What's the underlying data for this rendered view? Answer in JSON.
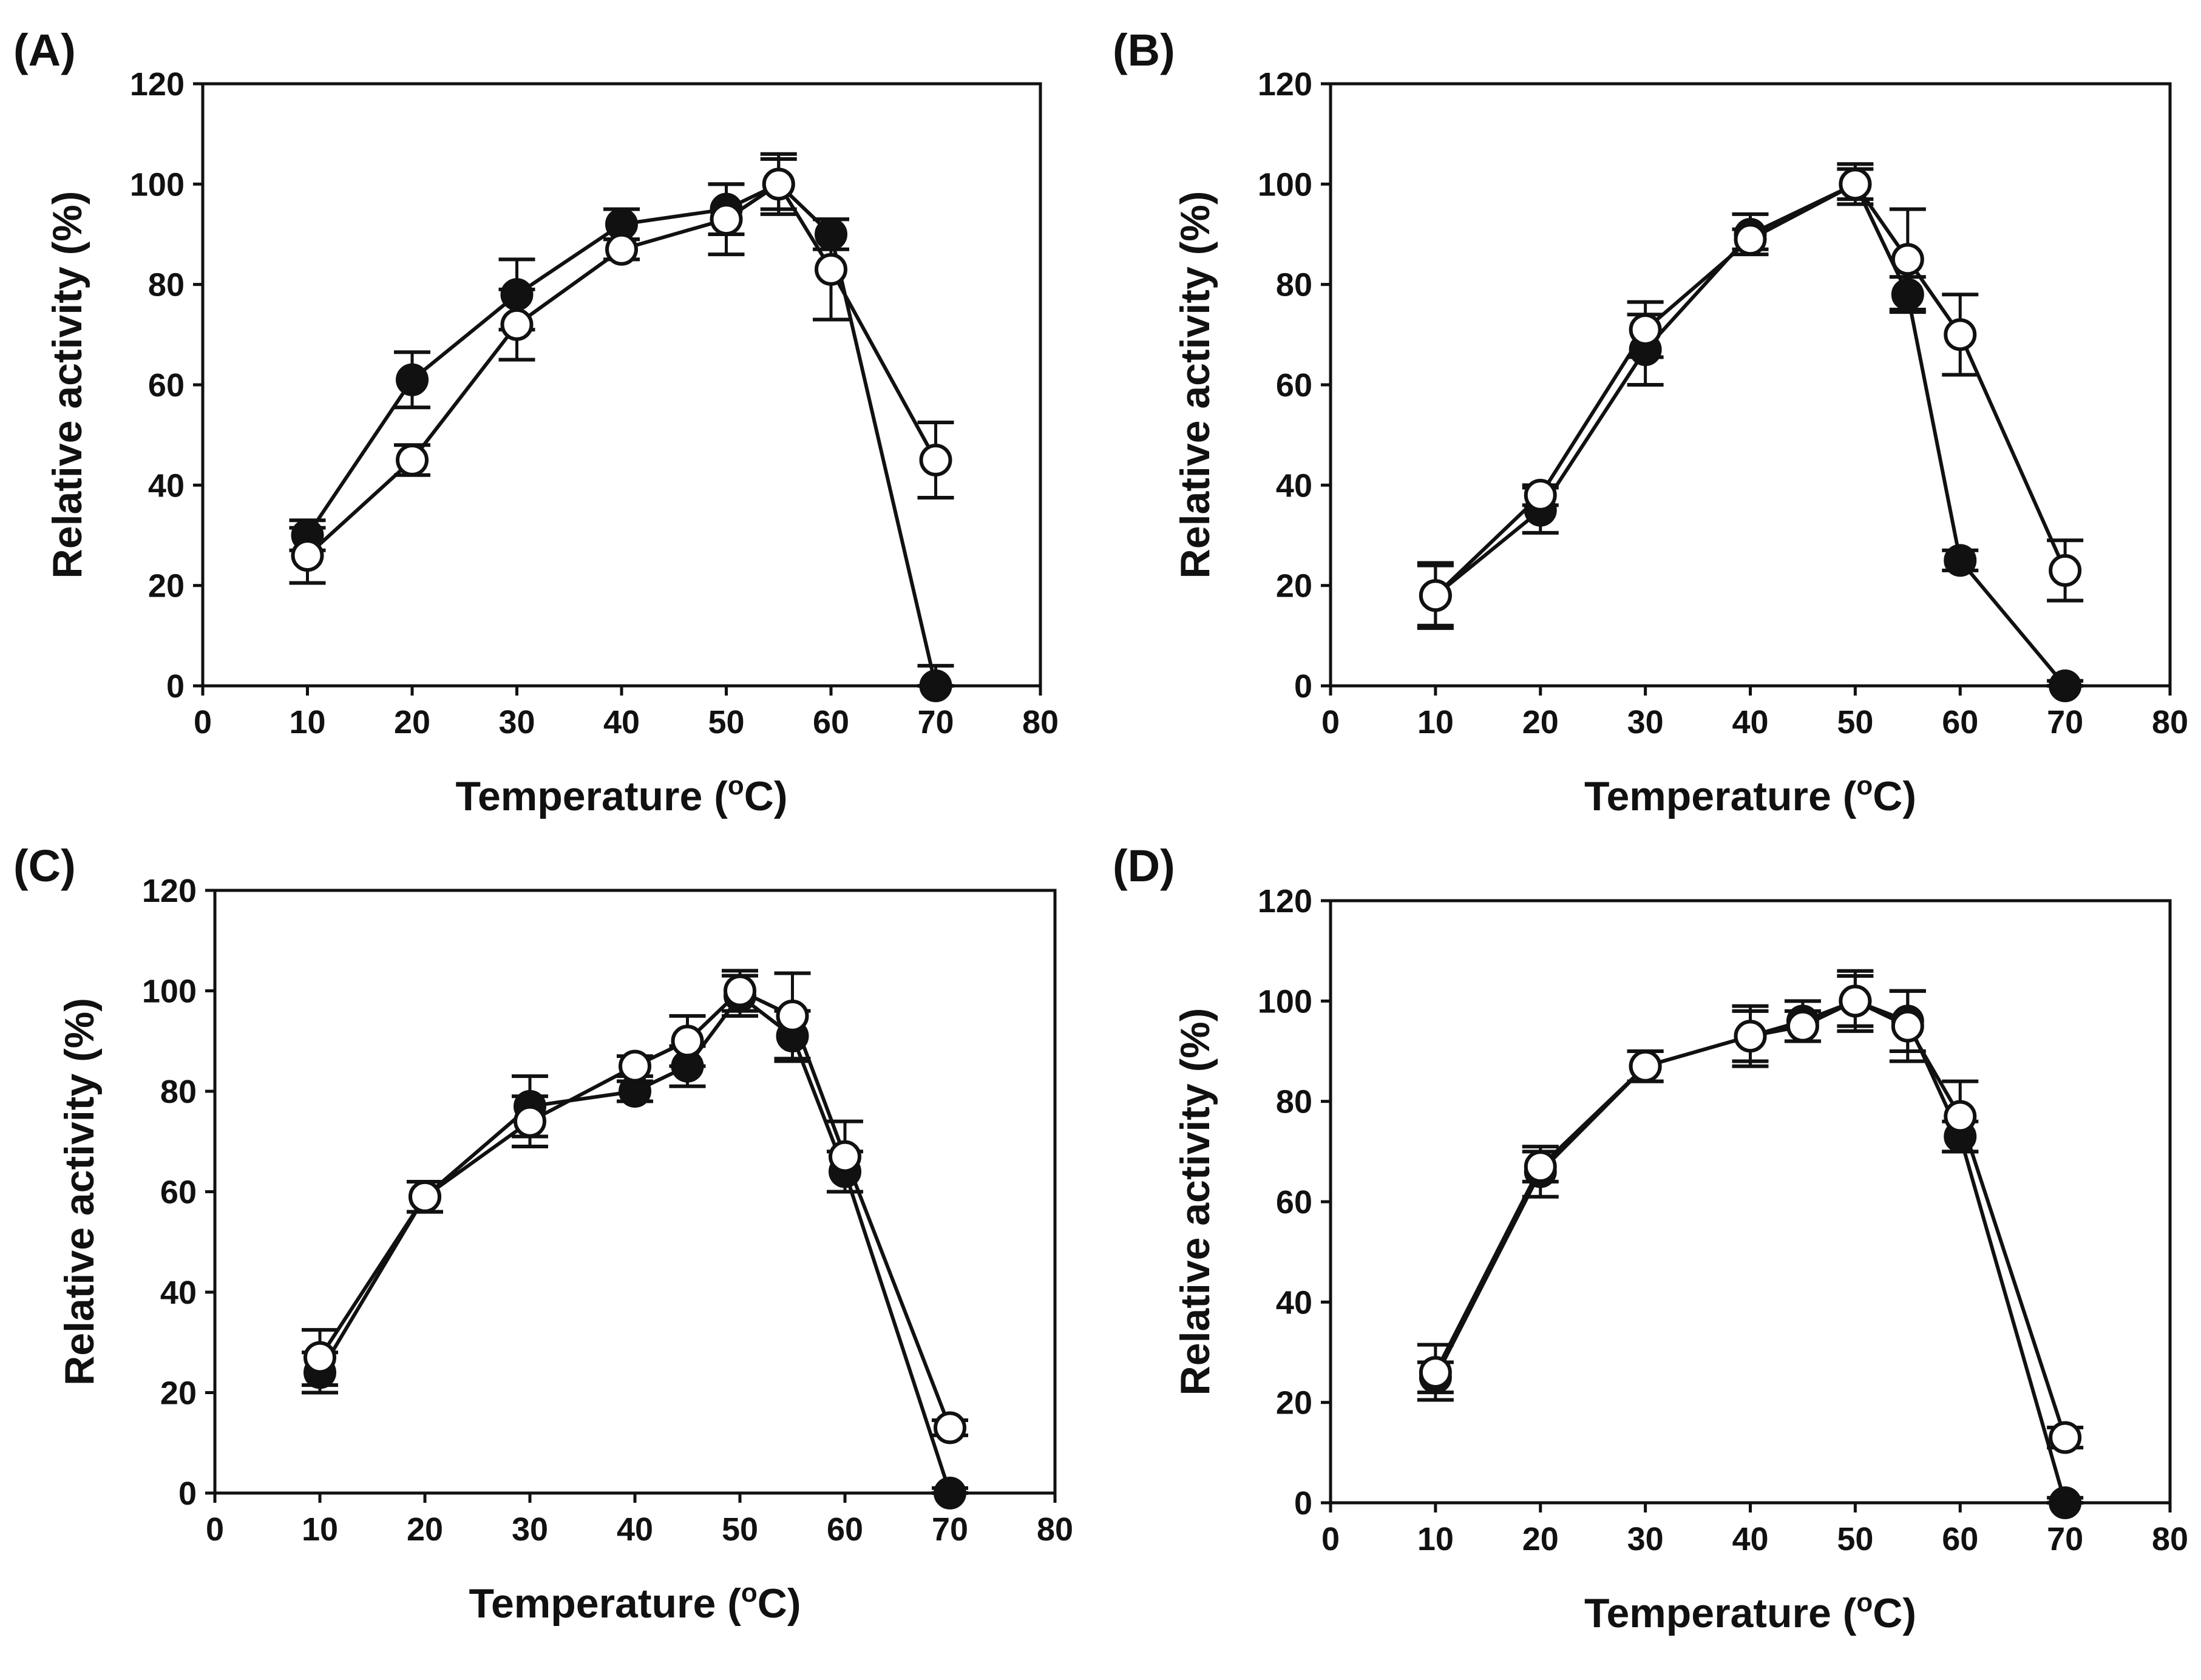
{
  "chart_data": [
    {
      "panel_label": "(A)",
      "type": "line",
      "xlabel": "Temperature",
      "xlabel_unit_prefix": " (",
      "xlabel_unit_sup": "o",
      "xlabel_unit": "C)",
      "ylabel": "Relative activity (%)",
      "xlim": [
        0,
        80
      ],
      "ylim": [
        0,
        120
      ],
      "xticks": [
        0,
        10,
        20,
        30,
        40,
        50,
        60,
        70,
        80
      ],
      "yticks": [
        0,
        20,
        40,
        60,
        80,
        100,
        120
      ],
      "grid": false,
      "series": [
        {
          "marker": "filled-circle",
          "x": [
            10,
            20,
            30,
            40,
            50,
            55,
            60,
            70
          ],
          "y": [
            30,
            61,
            78,
            92,
            95,
            100,
            90,
            0
          ],
          "err": [
            3,
            5.5,
            7,
            3,
            5,
            5,
            3,
            4
          ]
        },
        {
          "marker": "open-circle",
          "x": [
            10,
            20,
            30,
            40,
            50,
            55,
            60,
            70
          ],
          "y": [
            26,
            45,
            72,
            87,
            93,
            100,
            83,
            45
          ],
          "err": [
            5.5,
            3,
            7,
            2,
            7,
            6,
            10,
            7.5
          ]
        }
      ]
    },
    {
      "panel_label": "(B)",
      "type": "line",
      "xlabel": "Temperature",
      "xlabel_unit_prefix": " (",
      "xlabel_unit_sup": "o",
      "xlabel_unit": "C)",
      "ylabel": "Relative activity (%)",
      "xlim": [
        0,
        80
      ],
      "ylim": [
        0,
        120
      ],
      "xticks": [
        0,
        10,
        20,
        30,
        40,
        50,
        60,
        70,
        80
      ],
      "yticks": [
        0,
        20,
        40,
        60,
        80,
        100,
        120
      ],
      "grid": false,
      "series": [
        {
          "marker": "filled-circle",
          "x": [
            10,
            20,
            30,
            40,
            50,
            55,
            60,
            70
          ],
          "y": [
            18,
            35,
            67,
            90,
            100,
            78,
            25,
            0
          ],
          "err": [
            6,
            4.5,
            7,
            4,
            4,
            3.5,
            2,
            1
          ]
        },
        {
          "marker": "open-circle",
          "x": [
            10,
            20,
            30,
            40,
            50,
            55,
            60,
            70
          ],
          "y": [
            18,
            38,
            71,
            89,
            100,
            85,
            70,
            23
          ],
          "err": [
            6.5,
            2,
            5.5,
            2,
            3,
            10,
            8,
            6
          ]
        }
      ]
    },
    {
      "panel_label": "(C)",
      "type": "line",
      "xlabel": "Temperature",
      "xlabel_unit_prefix": " (",
      "xlabel_unit_sup": "o",
      "xlabel_unit": "C)",
      "ylabel": "Relative activity (%)",
      "xlim": [
        0,
        80
      ],
      "ylim": [
        0,
        120
      ],
      "xticks": [
        0,
        10,
        20,
        30,
        40,
        50,
        60,
        70,
        80
      ],
      "yticks": [
        0,
        20,
        40,
        60,
        80,
        100,
        120
      ],
      "grid": false,
      "series": [
        {
          "marker": "filled-circle",
          "x": [
            10,
            20,
            30,
            40,
            45,
            50,
            55,
            60,
            70
          ],
          "y": [
            24,
            59,
            77,
            80,
            85,
            99,
            91,
            64,
            0
          ],
          "err": [
            4,
            3,
            6,
            2,
            4,
            4,
            5,
            4,
            1
          ]
        },
        {
          "marker": "open-circle",
          "x": [
            10,
            20,
            30,
            40,
            45,
            50,
            55,
            60,
            70
          ],
          "y": [
            27,
            59,
            74,
            85,
            90,
            100,
            95,
            67,
            13
          ],
          "err": [
            5.5,
            3,
            5,
            2,
            5,
            4,
            8.5,
            7,
            1.5
          ]
        }
      ]
    },
    {
      "panel_label": "(D)",
      "type": "line",
      "xlabel": "Temperature",
      "xlabel_unit_prefix": " (",
      "xlabel_unit_sup": "o",
      "xlabel_unit": "C)",
      "ylabel": "Relative activity (%)",
      "xlim": [
        0,
        80
      ],
      "ylim": [
        0,
        120
      ],
      "xticks": [
        0,
        10,
        20,
        30,
        40,
        50,
        60,
        70,
        80
      ],
      "yticks": [
        0,
        20,
        40,
        60,
        80,
        100,
        120
      ],
      "grid": false,
      "series": [
        {
          "marker": "filled-circle",
          "x": [
            10,
            20,
            30,
            40,
            45,
            50,
            55,
            60,
            70
          ],
          "y": [
            25,
            66,
            87,
            93,
            96,
            100,
            96,
            73,
            0
          ],
          "err": [
            3,
            5,
            3,
            5,
            4,
            5,
            6,
            3,
            1
          ]
        },
        {
          "marker": "open-circle",
          "x": [
            10,
            20,
            30,
            40,
            45,
            50,
            55,
            60,
            70
          ],
          "y": [
            26,
            67,
            87,
            93,
            95,
            100,
            95,
            77,
            13
          ],
          "err": [
            5.5,
            3,
            3,
            6,
            3,
            6,
            7,
            7,
            2
          ]
        }
      ]
    }
  ]
}
